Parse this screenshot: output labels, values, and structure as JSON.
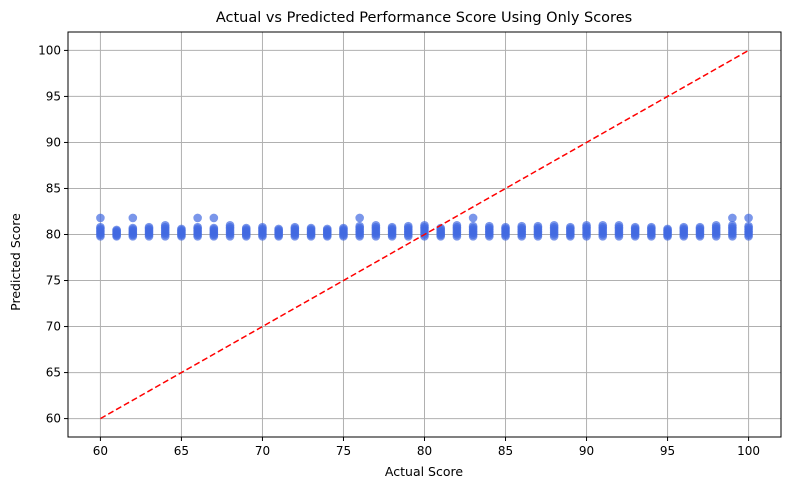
{
  "chart_data": {
    "type": "scatter",
    "title": "Actual vs Predicted Performance Score Using Only Scores",
    "xlabel": "Actual Score",
    "ylabel": "Predicted Score",
    "xlim": [
      58,
      102
    ],
    "ylim": [
      58,
      102
    ],
    "xticks": [
      60,
      65,
      70,
      75,
      80,
      85,
      90,
      95,
      100
    ],
    "yticks": [
      60,
      65,
      70,
      75,
      80,
      85,
      90,
      95,
      100
    ],
    "grid": true,
    "point_color": "#4169e1",
    "reference_line": {
      "style": "dashed",
      "color": "#ff0000",
      "from": [
        60,
        60
      ],
      "to": [
        100,
        100
      ]
    },
    "x_values": [
      60,
      61,
      62,
      63,
      64,
      65,
      66,
      67,
      68,
      69,
      70,
      71,
      72,
      73,
      74,
      75,
      76,
      77,
      78,
      79,
      80,
      81,
      82,
      83,
      84,
      85,
      86,
      87,
      88,
      89,
      90,
      91,
      92,
      93,
      94,
      95,
      96,
      97,
      98,
      99,
      100
    ],
    "y_min": [
      79.8,
      79.8,
      79.8,
      79.8,
      79.8,
      79.8,
      79.8,
      79.8,
      79.8,
      79.8,
      79.8,
      79.8,
      79.8,
      79.8,
      79.8,
      79.8,
      79.8,
      79.8,
      79.8,
      79.8,
      79.8,
      79.8,
      79.8,
      79.8,
      79.8,
      79.8,
      79.8,
      79.8,
      79.8,
      79.8,
      79.8,
      79.8,
      79.8,
      79.8,
      79.8,
      79.8,
      79.8,
      79.8,
      79.8,
      79.8,
      79.8
    ],
    "y_max": [
      80.8,
      80.5,
      80.7,
      80.8,
      81.0,
      80.6,
      80.8,
      80.7,
      81.0,
      80.7,
      80.8,
      80.6,
      80.8,
      80.7,
      80.6,
      80.7,
      80.9,
      81.0,
      80.8,
      80.9,
      81.0,
      80.7,
      81.0,
      80.9,
      80.9,
      80.8,
      80.9,
      80.9,
      81.0,
      80.8,
      81.0,
      81.0,
      81.0,
      80.8,
      80.8,
      80.6,
      80.8,
      80.8,
      81.0,
      81.0,
      80.9
    ],
    "outliers": [
      [
        60,
        81.8
      ],
      [
        62,
        81.8
      ],
      [
        66,
        81.8
      ],
      [
        67,
        81.8
      ],
      [
        76,
        81.8
      ],
      [
        83,
        81.8
      ],
      [
        99,
        81.8
      ],
      [
        100,
        81.8
      ]
    ]
  }
}
